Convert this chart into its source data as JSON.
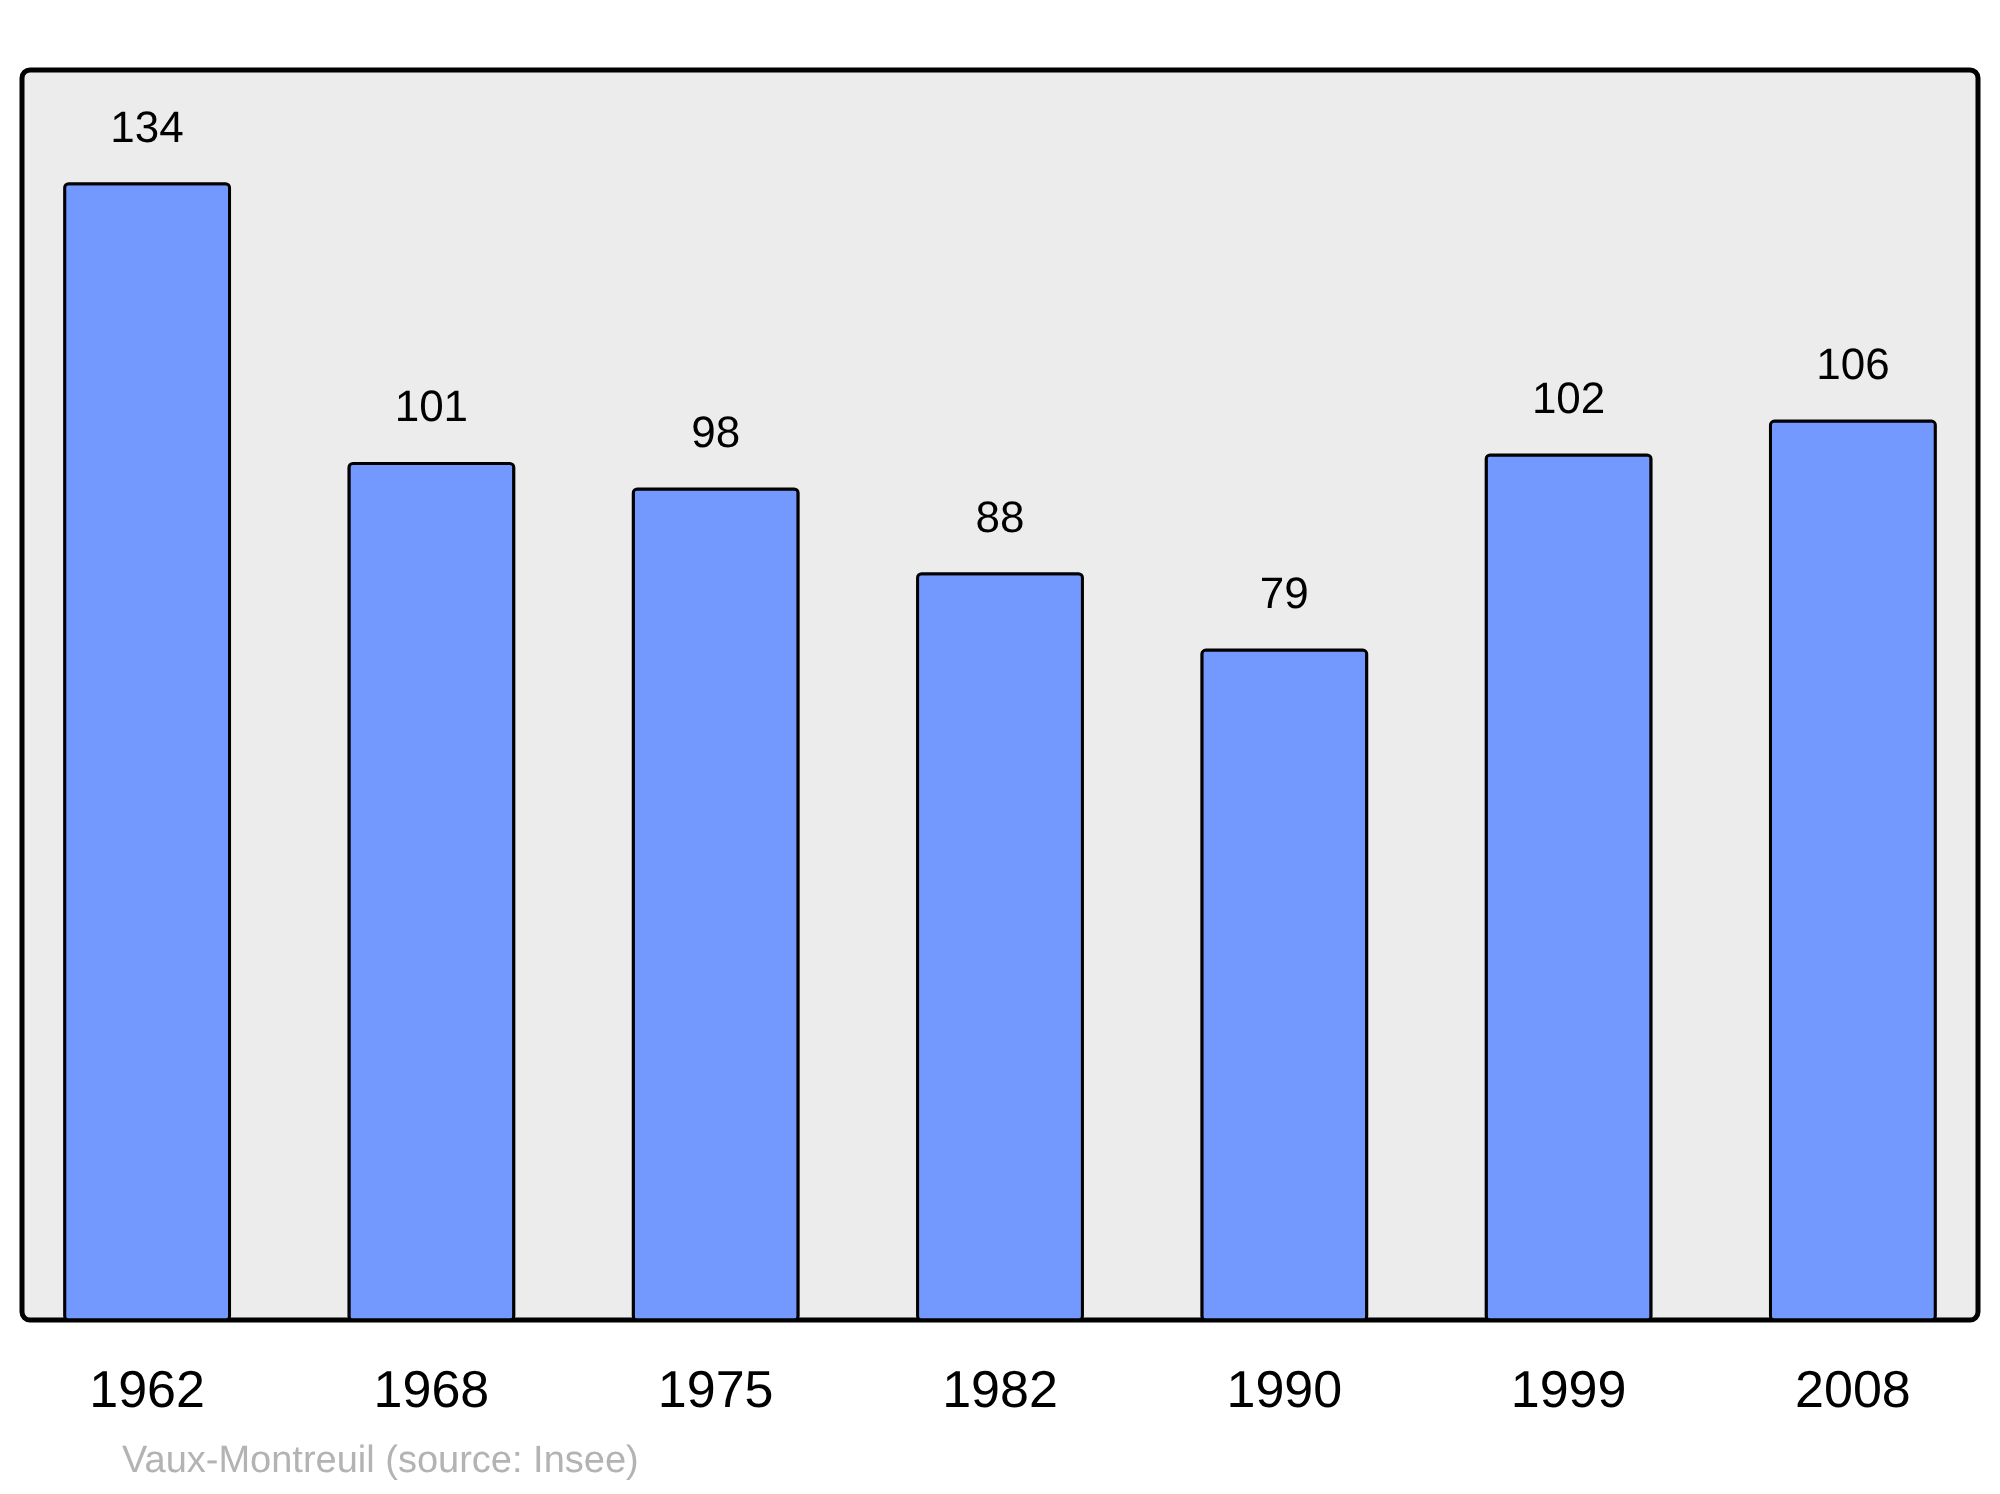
{
  "chart_data": {
    "type": "bar",
    "categories": [
      "1962",
      "1968",
      "1975",
      "1982",
      "1990",
      "1999",
      "2008"
    ],
    "values": [
      134,
      101,
      98,
      88,
      79,
      102,
      106
    ],
    "color": "#7399ff",
    "data_labels": true,
    "annotations": [
      "Vaux-Montreuil    (source: Insee)"
    ]
  }
}
